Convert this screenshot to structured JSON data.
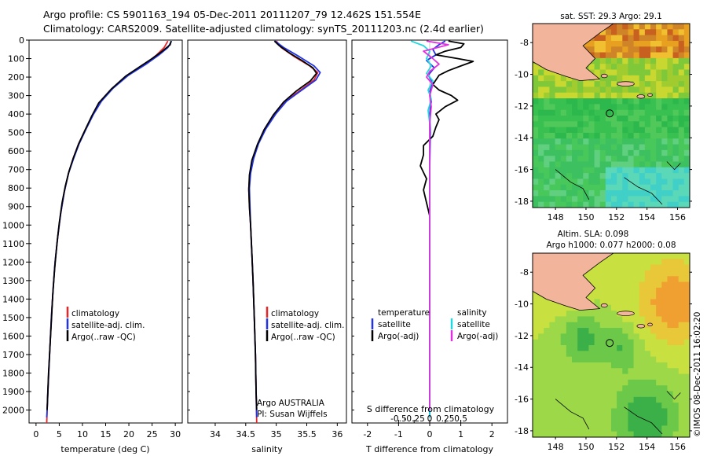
{
  "header": {
    "line1": "Argo profile: CS 5901163_194 05-Dec-2011 20111207_79 12.462S 151.554E",
    "line2": "Climatology: CARS2009. Satellite-adjusted climatology: synTS_20111203.nc (2.4d earlier)"
  },
  "colors": {
    "climatology": "#e8262a",
    "satellite": "#2233e6",
    "argo": "#000000",
    "sal_satellite": "#22d8e0",
    "sal_argo": "#e030e0",
    "land": "#f2b49a"
  },
  "depth_axis": {
    "ylim": [
      2070,
      0
    ],
    "ticks": [
      0,
      100,
      200,
      300,
      400,
      500,
      600,
      700,
      800,
      900,
      1000,
      1100,
      1200,
      1300,
      1400,
      1500,
      1600,
      1700,
      1800,
      1900,
      2000
    ]
  },
  "chart_data": [
    {
      "id": "temperature",
      "type": "line",
      "xlabel": "temperature (deg C)",
      "xlim": [
        -1.5,
        31.5
      ],
      "xticks": [
        0,
        5,
        10,
        15,
        20,
        25,
        30
      ],
      "xticklabels": [
        "0",
        "5",
        "10",
        "15",
        "20",
        "25",
        "30"
      ],
      "legend": [
        "climatology",
        "satellite-adj. clim.",
        "Argo(..raw -QC)"
      ],
      "series": [
        {
          "name": "climatology",
          "color": "#e8262a",
          "points": [
            [
              28.4,
              5
            ],
            [
              27.6,
              40
            ],
            [
              26.0,
              80
            ],
            [
              23.5,
              130
            ],
            [
              19.8,
              190
            ],
            [
              16.5,
              260
            ],
            [
              14.0,
              330
            ],
            [
              12.3,
              400
            ],
            [
              10.7,
              480
            ],
            [
              9.2,
              560
            ],
            [
              8.0,
              640
            ],
            [
              7.0,
              720
            ],
            [
              6.1,
              820
            ],
            [
              5.3,
              940
            ],
            [
              4.7,
              1060
            ],
            [
              4.1,
              1200
            ],
            [
              3.7,
              1340
            ],
            [
              3.3,
              1500
            ],
            [
              3.0,
              1660
            ],
            [
              2.7,
              1820
            ],
            [
              2.4,
              2000
            ],
            [
              2.3,
              2070
            ]
          ]
        },
        {
          "name": "satellite-adj. clim.",
          "color": "#2233e6",
          "points": [
            [
              29.2,
              5
            ],
            [
              28.4,
              40
            ],
            [
              26.5,
              80
            ],
            [
              23.7,
              130
            ],
            [
              19.9,
              190
            ],
            [
              16.6,
              260
            ],
            [
              14.1,
              330
            ],
            [
              12.4,
              400
            ],
            [
              10.8,
              480
            ],
            [
              9.3,
              560
            ],
            [
              8.1,
              640
            ],
            [
              7.0,
              720
            ],
            [
              6.1,
              820
            ],
            [
              5.3,
              940
            ],
            [
              4.7,
              1060
            ],
            [
              4.1,
              1200
            ],
            [
              3.7,
              1340
            ],
            [
              3.3,
              1500
            ],
            [
              3.0,
              1660
            ],
            [
              2.7,
              1820
            ],
            [
              2.4,
              2000
            ],
            [
              2.3,
              2040
            ]
          ]
        },
        {
          "name": "Argo(..raw -QC)",
          "color": "#000000",
          "points": [
            [
              29.1,
              5
            ],
            [
              28.9,
              25
            ],
            [
              27.2,
              60
            ],
            [
              25.0,
              100
            ],
            [
              22.6,
              140
            ],
            [
              19.3,
              195
            ],
            [
              16.2,
              265
            ],
            [
              13.5,
              340
            ],
            [
              12.0,
              410
            ],
            [
              10.5,
              490
            ],
            [
              9.2,
              560
            ],
            [
              8.0,
              640
            ],
            [
              7.1,
              710
            ],
            [
              6.3,
              790
            ],
            [
              5.6,
              880
            ],
            [
              5.0,
              990
            ],
            [
              4.5,
              1100
            ],
            [
              4.0,
              1240
            ],
            [
              3.6,
              1380
            ],
            [
              3.3,
              1520
            ],
            [
              3.0,
              1660
            ],
            [
              2.7,
              1800
            ],
            [
              2.5,
              1930
            ],
            [
              2.4,
              2000
            ]
          ]
        }
      ]
    },
    {
      "id": "salinity",
      "type": "line",
      "xlabel": "salinity",
      "xlim": [
        33.55,
        36.15
      ],
      "xticks": [
        34,
        34.5,
        35,
        35.5,
        36
      ],
      "xticklabels": [
        "34",
        "34.5",
        "35",
        "35.5",
        "36"
      ],
      "legend": [
        "climatology",
        "satellite-adj. clim.",
        "Argo(..raw -QC)"
      ],
      "annotation": [
        "Argo AUSTRALIA",
        "PI: Susan Wijffels"
      ],
      "series": [
        {
          "name": "climatology",
          "color": "#e8262a",
          "points": [
            [
              35.0,
              5
            ],
            [
              35.08,
              40
            ],
            [
              35.3,
              90
            ],
            [
              35.55,
              140
            ],
            [
              35.68,
              175
            ],
            [
              35.62,
              215
            ],
            [
              35.4,
              270
            ],
            [
              35.15,
              330
            ],
            [
              34.98,
              400
            ],
            [
              34.82,
              480
            ],
            [
              34.7,
              560
            ],
            [
              34.62,
              640
            ],
            [
              34.57,
              720
            ],
            [
              34.55,
              800
            ],
            [
              34.56,
              900
            ],
            [
              34.58,
              1000
            ],
            [
              34.6,
              1150
            ],
            [
              34.62,
              1300
            ],
            [
              34.64,
              1500
            ],
            [
              34.66,
              1700
            ],
            [
              34.67,
              1900
            ],
            [
              34.68,
              2070
            ]
          ]
        },
        {
          "name": "satellite-adj. clim.",
          "color": "#2233e6",
          "points": [
            [
              34.98,
              5
            ],
            [
              35.12,
              40
            ],
            [
              35.38,
              90
            ],
            [
              35.62,
              140
            ],
            [
              35.72,
              175
            ],
            [
              35.65,
              215
            ],
            [
              35.42,
              270
            ],
            [
              35.17,
              330
            ],
            [
              34.99,
              400
            ],
            [
              34.83,
              480
            ],
            [
              34.71,
              560
            ],
            [
              34.63,
              640
            ],
            [
              34.58,
              720
            ],
            [
              34.56,
              800
            ],
            [
              34.57,
              900
            ],
            [
              34.58,
              1000
            ],
            [
              34.6,
              1150
            ],
            [
              34.62,
              1300
            ],
            [
              34.64,
              1500
            ],
            [
              34.66,
              1700
            ],
            [
              34.67,
              1900
            ],
            [
              34.68,
              2040
            ]
          ]
        },
        {
          "name": "Argo(..raw -QC)",
          "color": "#000000",
          "points": [
            [
              34.97,
              5
            ],
            [
              35.05,
              30
            ],
            [
              35.22,
              70
            ],
            [
              35.42,
              110
            ],
            [
              35.6,
              150
            ],
            [
              35.66,
              180
            ],
            [
              35.56,
              220
            ],
            [
              35.33,
              275
            ],
            [
              35.12,
              335
            ],
            [
              34.95,
              405
            ],
            [
              34.8,
              485
            ],
            [
              34.69,
              565
            ],
            [
              34.6,
              650
            ],
            [
              34.56,
              730
            ],
            [
              34.55,
              810
            ],
            [
              34.56,
              900
            ],
            [
              34.58,
              1000
            ],
            [
              34.6,
              1150
            ],
            [
              34.62,
              1300
            ],
            [
              34.64,
              1500
            ],
            [
              34.66,
              1700
            ],
            [
              34.67,
              1900
            ],
            [
              34.68,
              2000
            ]
          ]
        }
      ]
    },
    {
      "id": "difference",
      "type": "line",
      "xlabel": "T difference from climatology",
      "xlabel_top": "S difference from climatology",
      "xlim": [
        -2.5,
        2.5
      ],
      "xticks": [
        -2,
        -1,
        0,
        1,
        2
      ],
      "xticklabels": [
        "-2",
        "-1",
        "0",
        "1",
        "2"
      ],
      "sticks": [
        -1,
        -0.5,
        0,
        0.5,
        1
      ],
      "sticklabels": [
        "-0.5",
        "-0.25",
        "0",
        "0.25",
        "0.5"
      ],
      "legend_left_title": "temperature",
      "legend_right_title": "salinity",
      "legend": [
        "satellite",
        "Argo(-adj)",
        "satellite",
        "Argo(-adj)"
      ],
      "series": [
        {
          "name": "T satellite",
          "color": "#2233e6",
          "points": [
            [
              0.5,
              5
            ],
            [
              0.3,
              25
            ],
            [
              0.1,
              50
            ],
            [
              0.2,
              80
            ],
            [
              -0.1,
              110
            ],
            [
              0.15,
              150
            ],
            [
              -0.05,
              190
            ],
            [
              0.1,
              230
            ],
            [
              0.0,
              280
            ],
            [
              0.05,
              330
            ],
            [
              0.0,
              400
            ],
            [
              0.02,
              500
            ],
            [
              0.0,
              700
            ],
            [
              0.0,
              1000
            ],
            [
              0.0,
              1500
            ],
            [
              0.0,
              2040
            ]
          ]
        },
        {
          "name": "T Argo(-adj)",
          "color": "#000000",
          "points": [
            [
              0.6,
              5
            ],
            [
              1.1,
              20
            ],
            [
              1.0,
              40
            ],
            [
              0.5,
              60
            ],
            [
              0.2,
              80
            ],
            [
              0.9,
              100
            ],
            [
              1.4,
              115
            ],
            [
              1.0,
              140
            ],
            [
              0.6,
              165
            ],
            [
              0.3,
              190
            ],
            [
              0.1,
              240
            ],
            [
              0.3,
              270
            ],
            [
              0.7,
              300
            ],
            [
              0.9,
              325
            ],
            [
              0.5,
              360
            ],
            [
              0.2,
              400
            ],
            [
              0.3,
              430
            ],
            [
              0.2,
              470
            ],
            [
              0.1,
              520
            ],
            [
              -0.2,
              570
            ],
            [
              -0.2,
              620
            ],
            [
              -0.3,
              680
            ],
            [
              -0.1,
              750
            ],
            [
              -0.2,
              810
            ],
            [
              -0.1,
              880
            ],
            [
              0.0,
              950
            ],
            [
              0.0,
              1100
            ],
            [
              0.0,
              1400
            ],
            [
              0.0,
              1700
            ],
            [
              0.0,
              2000
            ]
          ]
        },
        {
          "name": "S satellite",
          "color": "#22d8e0",
          "points": [
            [
              -0.6,
              5
            ],
            [
              -0.2,
              30
            ],
            [
              0.0,
              60
            ],
            [
              -0.1,
              100
            ],
            [
              0.05,
              140
            ],
            [
              -0.1,
              180
            ],
            [
              0.1,
              220
            ],
            [
              -0.05,
              270
            ],
            [
              0.05,
              320
            ],
            [
              -0.05,
              380
            ],
            [
              0.0,
              450
            ],
            [
              0.0,
              700
            ],
            [
              0.0,
              1000
            ],
            [
              0.0,
              1500
            ],
            [
              0.0,
              2040
            ]
          ]
        },
        {
          "name": "S Argo(-adj)",
          "color": "#e030e0",
          "points": [
            [
              -0.1,
              5
            ],
            [
              0.6,
              25
            ],
            [
              -0.2,
              60
            ],
            [
              0.1,
              100
            ],
            [
              0.3,
              130
            ],
            [
              0.0,
              170
            ],
            [
              -0.1,
              200
            ],
            [
              0.1,
              240
            ],
            [
              0.0,
              300
            ],
            [
              0.05,
              360
            ],
            [
              0.0,
              450
            ],
            [
              0.0,
              700
            ],
            [
              0.0,
              1000
            ],
            [
              0.0,
              1500
            ],
            [
              0.0,
              2000
            ]
          ]
        }
      ]
    },
    {
      "id": "sst_map",
      "type": "heatmap",
      "title": "sat. SST: 29.3 Argo: 29.1",
      "xlim": [
        146.5,
        156.8
      ],
      "ylim": [
        -18.4,
        -6.8
      ],
      "xticks": [
        148,
        150,
        152,
        154,
        156
      ],
      "yticks": [
        -8,
        -10,
        -12,
        -14,
        -16,
        -18
      ],
      "marker": [
        151.554,
        -12.462
      ]
    },
    {
      "id": "sla_map",
      "type": "heatmap",
      "title_lines": [
        "Altim. SLA: 0.098",
        "Argo h1000: 0.077 h2000: 0.08"
      ],
      "xlim": [
        146.5,
        156.8
      ],
      "ylim": [
        -18.4,
        -6.8
      ],
      "xticks": [
        148,
        150,
        152,
        154,
        156
      ],
      "yticks": [
        -8,
        -10,
        -12,
        -14,
        -16,
        -18
      ],
      "marker": [
        151.554,
        -12.462
      ]
    }
  ],
  "footer": {
    "imos_stamp": "©IMOS 08-Dec-2011 16:02:20"
  }
}
